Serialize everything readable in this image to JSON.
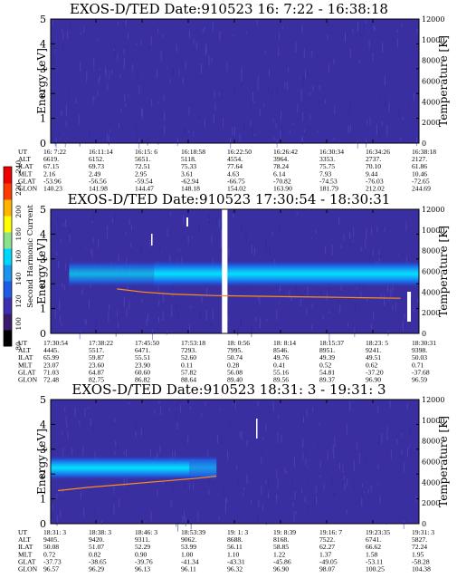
{
  "colors": {
    "background": "#3a2fa0",
    "band_core": "#00e0ff",
    "band_mid": "#18a8f0",
    "trace": "#ff8c1a"
  },
  "colorbar": {
    "label": "Second Harmonic Current",
    "ticks": [
      "80",
      "100",
      "120",
      "140",
      "160",
      "180",
      "200",
      "220",
      "240"
    ],
    "colors": [
      "#000000",
      "#3a1a6e",
      "#3d2fb0",
      "#1f5ae6",
      "#1c93ee",
      "#00d7ff",
      "#8be28e",
      "#ffff00",
      "#ffb400",
      "#ff3a00",
      "#ee0000"
    ]
  },
  "chart_data": [
    {
      "type": "heatmap",
      "title": "EXOS-D/TED   Date:910523  16: 7:22 - 16:38:18",
      "ylabel": "Energy [eV]",
      "y2label": "Temperature [K]",
      "ylim": [
        0,
        5
      ],
      "y2lim": [
        0,
        12000
      ],
      "yticks": [
        "0",
        "1",
        "2",
        "3",
        "4",
        "5"
      ],
      "y2ticks": [
        "0",
        "2000",
        "4000",
        "6000",
        "8000",
        "10000",
        "12000"
      ],
      "band": null,
      "temperature_trace": null,
      "ephemeris": {
        "labels": [
          "UT",
          "ALT",
          "ILAT",
          "MLT",
          "GLAT",
          "GLON"
        ],
        "columns": [
          [
            "16: 7:22",
            "6619.",
            "67.15",
            "2.16",
            "-53.96",
            "140.23"
          ],
          [
            "16:11:14",
            "6152.",
            "69.73",
            "2.49",
            "-56.56",
            "141.98"
          ],
          [
            "16:15: 6",
            "5651.",
            "72.51",
            "2.95",
            "-59.54",
            "144.47"
          ],
          [
            "16:18:58",
            "5118.",
            "75.33",
            "3.61",
            "-62.94",
            "148.18"
          ],
          [
            "16:22:50",
            "4554.",
            "77.64",
            "4.63",
            "-66.75",
            "154.02"
          ],
          [
            "16:26:42",
            "3964.",
            "78.24",
            "6.14",
            "-70.82",
            "163.90"
          ],
          [
            "16:30:34",
            "3353.",
            "75.75",
            "7.93",
            "-74.53",
            "181.79"
          ],
          [
            "16:34:26",
            "2737.",
            "70.10",
            "9.44",
            "-76.03",
            "212.02"
          ],
          [
            "16:38:18",
            "2127.",
            "61.86",
            "10.46",
            "-72.65",
            "244.69"
          ]
        ]
      }
    },
    {
      "type": "heatmap",
      "title": "EXOS-D/TED   Date:910523  17:30:54 - 18:30:31",
      "ylabel": "Energy [eV]",
      "y2label": "Temperature [K]",
      "ylim": [
        0,
        5
      ],
      "y2lim": [
        0,
        12000
      ],
      "yticks": [
        "0",
        "1",
        "2",
        "3",
        "4",
        "5"
      ],
      "y2ticks": [
        "0",
        "2000",
        "4000",
        "6000",
        "8000",
        "10000",
        "12000"
      ],
      "band": {
        "start": 0.05,
        "full": 0.33,
        "end": 1.0,
        "center_eV": 2.4,
        "half_width_eV": 0.55,
        "gap": [
          0.465,
          0.48
        ]
      },
      "temperature_trace": {
        "x": [
          0.18,
          0.25,
          0.33,
          0.45,
          0.55,
          0.65,
          0.75,
          0.85,
          0.95
        ],
        "temperature_K": [
          4300,
          4000,
          3800,
          3650,
          3600,
          3550,
          3500,
          3450,
          3400
        ]
      },
      "ephemeris": {
        "labels": [
          "UT",
          "ALT",
          "ILAT",
          "MLT",
          "GLAT",
          "GLON"
        ],
        "columns": [
          [
            "17:30:54",
            "4445.",
            "65.99",
            "23.07",
            "71.03",
            "72.48"
          ],
          [
            "17:38:22",
            "5517.",
            "59.87",
            "23.60",
            "64.87",
            "82.75"
          ],
          [
            "17:45:50",
            "6471.",
            "55.51",
            "23.90",
            "60.60",
            "86.82"
          ],
          [
            "17:53:18",
            "7293.",
            "52.60",
            "0.11",
            "57.82",
            "88.64"
          ],
          [
            "18: 0:56",
            "7995.",
            "50.74",
            "0.28",
            "56.08",
            "89.40"
          ],
          [
            "18: 8:14",
            "8546.",
            "49.76",
            "0.41",
            "55.16",
            "89.56"
          ],
          [
            "18:15:37",
            "8951.",
            "49.39",
            "0.52",
            "54.81",
            "89.37"
          ],
          [
            "18:23: 5",
            "9241.",
            "49.51",
            "0.62",
            "-37.20",
            "96.90"
          ],
          [
            "18:30:31",
            "9398.",
            "50.03",
            "0.71",
            "-37.68",
            "96.59"
          ]
        ]
      }
    },
    {
      "type": "heatmap",
      "title": "EXOS-D/TED   Date:910523  18:31: 3 - 19:31: 3",
      "ylabel": "Energy [eV]",
      "y2label": "Temperature [K]",
      "ylim": [
        0,
        5
      ],
      "y2lim": [
        0,
        12000
      ],
      "yticks": [
        "0",
        "1",
        "2",
        "3",
        "4",
        "5"
      ],
      "y2ticks": [
        "0",
        "2000",
        "4000",
        "6000",
        "8000",
        "10000",
        "12000"
      ],
      "band": {
        "start": 0.0,
        "full": 0.0,
        "end": 0.45,
        "center_eV": 2.25,
        "half_width_eV": 0.5,
        "gap": null
      },
      "temperature_trace": {
        "x": [
          0.02,
          0.1,
          0.2,
          0.3,
          0.4,
          0.45
        ],
        "temperature_K": [
          3200,
          3500,
          3800,
          4100,
          4400,
          4600
        ]
      },
      "ephemeris": {
        "labels": [
          "UT",
          "ALT",
          "ILAT",
          "MLT",
          "GLAT",
          "GLON"
        ],
        "columns": [
          [
            "18:31: 3",
            "9405.",
            "50.08",
            "0.72",
            "-37.73",
            "96.57"
          ],
          [
            "18:38: 3",
            "9420.",
            "51.07",
            "0.82",
            "-38.65",
            "96.29"
          ],
          [
            "18:46: 3",
            "9311.",
            "52.29",
            "0.90",
            "-39.76",
            "96.13"
          ],
          [
            "18:53:39",
            "9062.",
            "53.99",
            "1.00",
            "-41.34",
            "96.11"
          ],
          [
            "19: 1: 3",
            "8688.",
            "56.11",
            "1.10",
            "-43.31",
            "96.32"
          ],
          [
            "19: 8:39",
            "8168.",
            "58.85",
            "1.22",
            "-45.86",
            "96.90"
          ],
          [
            "19:16: 7",
            "7522.",
            "62.27",
            "1.37",
            "-49.05",
            "98.07"
          ],
          [
            "19:23:35",
            "6741.",
            "66.62",
            "1.58",
            "-53.11",
            "100.25"
          ],
          [
            "19:31: 3",
            "5827.",
            "72.24",
            "1.95",
            "-58.28",
            "104.38"
          ]
        ]
      }
    }
  ]
}
